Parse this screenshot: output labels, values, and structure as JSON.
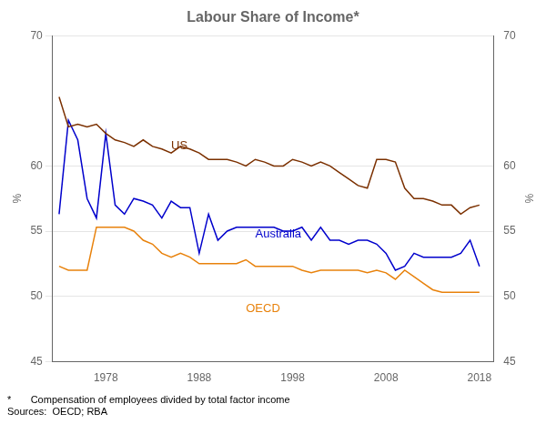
{
  "chart_data": {
    "type": "line",
    "title": "Labour Share of Income*",
    "ylabel": "%",
    "y2label": "%",
    "footnotes": [
      "*       Compensation of employees divided by total factor income",
      "Sources:  OECD; RBA"
    ],
    "x": [
      1973,
      1974,
      1975,
      1976,
      1977,
      1978,
      1979,
      1980,
      1981,
      1982,
      1983,
      1984,
      1985,
      1986,
      1987,
      1988,
      1989,
      1990,
      1991,
      1992,
      1993,
      1994,
      1995,
      1996,
      1997,
      1998,
      1999,
      2000,
      2001,
      2002,
      2003,
      2004,
      2005,
      2006,
      2007,
      2008,
      2009,
      2010,
      2011,
      2012,
      2013,
      2014,
      2015,
      2016,
      2017,
      2018
    ],
    "series": [
      {
        "name": "US",
        "color": "#7B3000",
        "values": [
          65.3,
          63.0,
          63.2,
          63.0,
          63.2,
          62.5,
          62.0,
          61.8,
          61.5,
          62.0,
          61.5,
          61.3,
          61.0,
          61.5,
          61.3,
          61.0,
          60.5,
          60.5,
          60.5,
          60.3,
          60.0,
          60.5,
          60.3,
          60.0,
          60.0,
          60.5,
          60.3,
          60.0,
          60.3,
          60.0,
          59.5,
          59.0,
          58.5,
          58.3,
          60.5,
          60.5,
          60.3,
          58.3,
          57.5,
          57.5,
          57.3,
          57.0,
          57.0,
          56.3,
          56.8,
          57.0
        ]
      },
      {
        "name": "Australia",
        "color": "#0000CC",
        "values": [
          56.3,
          63.5,
          62.0,
          57.5,
          56.0,
          62.5,
          57.0,
          56.3,
          57.5,
          57.3,
          57.0,
          56.0,
          57.3,
          56.8,
          56.8,
          53.3,
          56.3,
          54.3,
          55.0,
          55.3,
          55.3,
          55.3,
          55.3,
          55.3,
          55.0,
          55.0,
          55.3,
          54.3,
          55.3,
          54.3,
          54.3,
          54.0,
          54.3,
          54.3,
          54.0,
          53.3,
          52.0,
          52.3,
          53.3,
          53.0,
          53.0,
          53.0,
          53.0,
          53.3,
          54.3,
          52.3
        ]
      },
      {
        "name": "OECD",
        "color": "#E8820C",
        "values": [
          52.3,
          52.0,
          52.0,
          52.0,
          55.3,
          55.3,
          55.3,
          55.3,
          55.0,
          54.3,
          54.0,
          53.3,
          53.0,
          53.3,
          53.0,
          52.5,
          52.5,
          52.5,
          52.5,
          52.5,
          52.8,
          52.3,
          52.3,
          52.3,
          52.3,
          52.3,
          52.0,
          51.8,
          52.0,
          52.0,
          52.0,
          52.0,
          52.0,
          51.8,
          52.0,
          51.8,
          51.3,
          52.0,
          51.5,
          51.0,
          50.5,
          50.3,
          50.3,
          50.3,
          50.3,
          50.3
        ]
      }
    ],
    "annotations": [
      {
        "text": "US",
        "x": 1985,
        "y": 61.3,
        "color": "#7B3000"
      },
      {
        "text": "Australia",
        "x": 1994,
        "y": 54.5,
        "color": "#0000CC"
      },
      {
        "text": "OECD",
        "x": 1993,
        "y": 48.8,
        "color": "#E8820C"
      }
    ],
    "xlim": [
      1972.3,
      2019.5
    ],
    "xticks": [
      1978,
      1988,
      1998,
      2008,
      2018
    ],
    "ylim": [
      45,
      70
    ],
    "yticks": [
      45,
      50,
      55,
      60,
      70
    ],
    "y2lim": [
      45,
      70
    ],
    "y2ticks": [
      45,
      50,
      55,
      60,
      70
    ],
    "grid": true
  }
}
